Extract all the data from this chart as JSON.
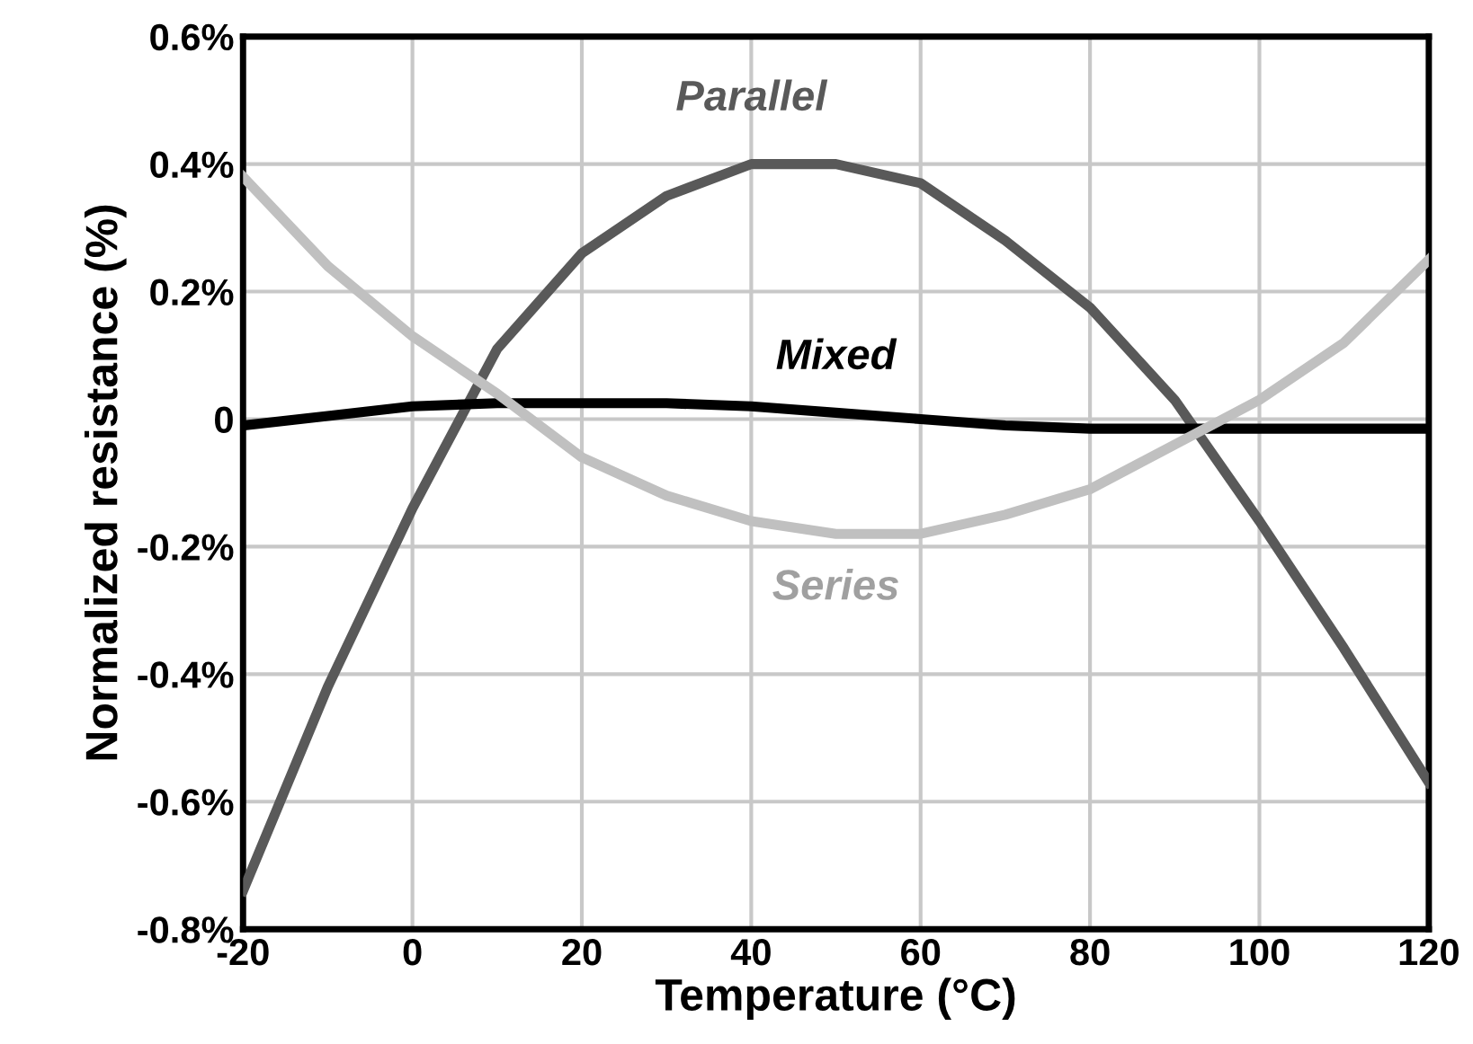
{
  "chart_data": {
    "type": "line",
    "xlabel": "Temperature (°C)",
    "ylabel": "Normalized resistance (%)",
    "x": [
      -20,
      -10,
      0,
      10,
      20,
      30,
      40,
      50,
      60,
      70,
      80,
      90,
      100,
      110,
      120
    ],
    "series": [
      {
        "name": "Parallel",
        "color": "#595959",
        "values": [
          -0.74,
          -0.42,
          -0.14,
          0.11,
          0.26,
          0.35,
          0.4,
          0.4,
          0.37,
          0.28,
          0.175,
          0.03,
          -0.16,
          -0.36,
          -0.57
        ]
      },
      {
        "name": "Mixed",
        "color": "#000000",
        "values": [
          -0.01,
          0.005,
          0.02,
          0.025,
          0.025,
          0.025,
          0.02,
          0.01,
          0.0,
          -0.01,
          -0.015,
          -0.015,
          -0.015,
          -0.015,
          -0.015
        ]
      },
      {
        "name": "Series",
        "color": "#c0c0c0",
        "values": [
          0.38,
          0.24,
          0.13,
          0.04,
          -0.06,
          -0.12,
          -0.16,
          -0.18,
          -0.18,
          -0.15,
          -0.11,
          -0.04,
          0.03,
          0.12,
          0.25
        ]
      }
    ],
    "xlim": [
      -20,
      120
    ],
    "xticks": [
      -20,
      0,
      20,
      40,
      60,
      80,
      100,
      120
    ],
    "ylim": [
      -0.8,
      0.6
    ],
    "yticks": [
      {
        "value": -0.8,
        "label": "-0.8%"
      },
      {
        "value": -0.6,
        "label": "-0.6%"
      },
      {
        "value": -0.4,
        "label": "-0.4%"
      },
      {
        "value": -0.2,
        "label": "-0.2%"
      },
      0,
      {
        "value": 0.2,
        "label": "0.2%"
      },
      {
        "value": 0.4,
        "label": "0.4%"
      },
      {
        "value": 0.6,
        "label": "0.6%"
      }
    ],
    "grid": true,
    "legend": false,
    "marker": "none",
    "line_style": "solid"
  }
}
